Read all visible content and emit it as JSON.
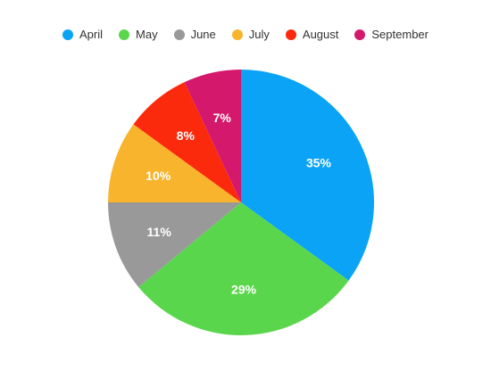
{
  "chart_data": {
    "type": "pie",
    "title": "",
    "legend_position": "top",
    "categories": [
      "April",
      "May",
      "June",
      "July",
      "August",
      "September"
    ],
    "values": [
      35,
      29,
      11,
      10,
      8,
      7
    ],
    "value_labels": [
      "35%",
      "29%",
      "11%",
      "10%",
      "8%",
      "7%"
    ],
    "colors": [
      "#0aa3f5",
      "#5ad64c",
      "#999999",
      "#f7b42c",
      "#fc2a0c",
      "#d4186c"
    ],
    "start_angle_deg": 0,
    "direction": "clockwise"
  }
}
